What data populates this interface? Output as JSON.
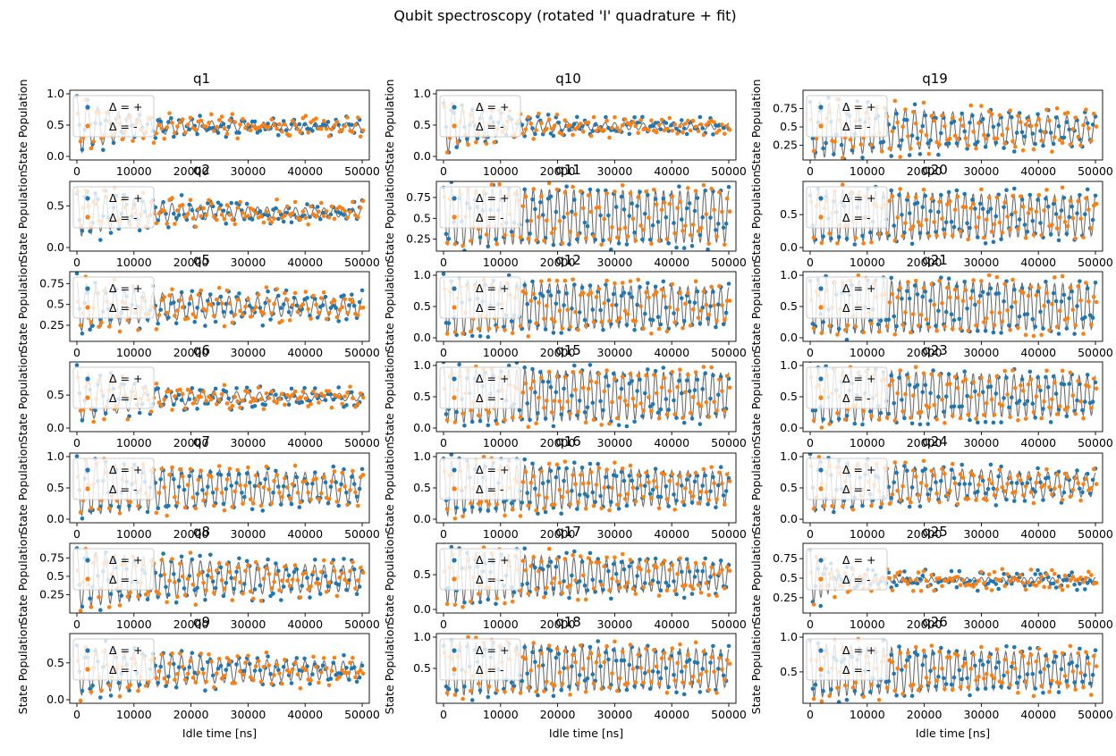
{
  "figure": {
    "suptitle": "Qubit spectroscopy (rotated 'I' quadrature + fit)"
  },
  "colors": {
    "series_plus": "#1f77b4",
    "series_minus": "#ff7f0e",
    "fit": "#555555"
  },
  "legend": {
    "plus": "Δ = +",
    "minus": "Δ = -"
  },
  "chart_data": {
    "type": "scatter",
    "layout": "7 rows x 3 columns",
    "xlabel": "Idle time [ns]",
    "ylabel": "State Population",
    "xlim": [
      0,
      50000
    ],
    "xticks": [
      0,
      10000,
      20000,
      30000,
      40000,
      50000
    ],
    "series_names": [
      "Δ = +",
      "Δ = -"
    ],
    "legend_position": "upper-left",
    "panels": [
      {
        "title": "q1",
        "ylim": [
          0,
          1.0
        ],
        "yticks": [
          0.0,
          0.5,
          1.0
        ],
        "amp0": 0.45,
        "amp1": 0.06,
        "decay": 9000,
        "center": 0.48,
        "freq": 0.00055
      },
      {
        "title": "q2",
        "ylim": [
          0,
          0.75
        ],
        "yticks": [
          0.0,
          0.5
        ],
        "amp0": 0.3,
        "amp1": 0.05,
        "decay": 12000,
        "center": 0.42,
        "freq": 0.0006
      },
      {
        "title": "q5",
        "ylim": [
          0.1,
          0.85
        ],
        "yticks": [
          0.25,
          0.5,
          0.75
        ],
        "amp0": 0.3,
        "amp1": 0.1,
        "decay": 14000,
        "center": 0.47,
        "freq": 0.0006
      },
      {
        "title": "q6",
        "ylim": [
          0,
          0.95
        ],
        "yticks": [
          0.0,
          0.5
        ],
        "amp0": 0.4,
        "amp1": 0.05,
        "decay": 12000,
        "center": 0.47,
        "freq": 0.0005
      },
      {
        "title": "q7",
        "ylim": [
          0,
          1.0
        ],
        "yticks": [
          0.0,
          0.5,
          1.0
        ],
        "amp0": 0.45,
        "amp1": 0.2,
        "decay": 25000,
        "center": 0.5,
        "freq": 0.0006
      },
      {
        "title": "q8",
        "ylim": [
          0.05,
          0.9
        ],
        "yticks": [
          0.25,
          0.5,
          0.75
        ],
        "amp0": 0.4,
        "amp1": 0.15,
        "decay": 22000,
        "center": 0.47,
        "freq": 0.0006
      },
      {
        "title": "q9",
        "ylim": [
          0,
          0.85
        ],
        "yticks": [
          0.0,
          0.5
        ],
        "amp0": 0.35,
        "amp1": 0.1,
        "decay": 20000,
        "center": 0.4,
        "freq": 0.0006
      },
      {
        "title": "q10",
        "ylim": [
          0,
          1.0
        ],
        "yticks": [
          0.0,
          0.5,
          1.0
        ],
        "amp0": 0.45,
        "amp1": 0.05,
        "decay": 8000,
        "center": 0.48,
        "freq": 0.0006
      },
      {
        "title": "q11",
        "ylim": [
          0.15,
          0.9
        ],
        "yticks": [
          0.25,
          0.5,
          0.75
        ],
        "amp0": 0.35,
        "amp1": 0.28,
        "decay": 60000,
        "center": 0.52,
        "freq": 0.0007
      },
      {
        "title": "q12",
        "ylim": [
          0,
          1.0
        ],
        "yticks": [
          0.0,
          0.5,
          1.0
        ],
        "amp0": 0.45,
        "amp1": 0.25,
        "decay": 40000,
        "center": 0.5,
        "freq": 0.0007
      },
      {
        "title": "q15",
        "ylim": [
          0,
          1.0
        ],
        "yticks": [
          0.0,
          0.5,
          1.0
        ],
        "amp0": 0.45,
        "amp1": 0.3,
        "decay": 60000,
        "center": 0.52,
        "freq": 0.0007
      },
      {
        "title": "q16",
        "ylim": [
          0,
          1.0
        ],
        "yticks": [
          0.0,
          0.5,
          1.0
        ],
        "amp0": 0.45,
        "amp1": 0.2,
        "decay": 35000,
        "center": 0.5,
        "freq": 0.0007
      },
      {
        "title": "q17",
        "ylim": [
          0,
          0.9
        ],
        "yticks": [
          0.0,
          0.5
        ],
        "amp0": 0.4,
        "amp1": 0.15,
        "decay": 30000,
        "center": 0.48,
        "freq": 0.0007
      },
      {
        "title": "q18",
        "ylim": [
          0,
          1.0
        ],
        "yticks": [
          0.5,
          1.0
        ],
        "amp0": 0.45,
        "amp1": 0.25,
        "decay": 40000,
        "center": 0.5,
        "freq": 0.0007
      },
      {
        "title": "q19",
        "ylim": [
          0.1,
          0.95
        ],
        "yticks": [
          0.25,
          0.5,
          0.75
        ],
        "amp0": 0.4,
        "amp1": 0.15,
        "decay": 25000,
        "center": 0.46,
        "freq": 0.0006
      },
      {
        "title": "q20",
        "ylim": [
          0,
          0.95
        ],
        "yticks": [
          0.0,
          0.5
        ],
        "amp0": 0.42,
        "amp1": 0.25,
        "decay": 45000,
        "center": 0.48,
        "freq": 0.0007
      },
      {
        "title": "q21",
        "ylim": [
          0,
          1.0
        ],
        "yticks": [
          0.0,
          0.5,
          1.0
        ],
        "amp0": 0.45,
        "amp1": 0.3,
        "decay": 60000,
        "center": 0.5,
        "freq": 0.0007
      },
      {
        "title": "q23",
        "ylim": [
          0,
          1.0
        ],
        "yticks": [
          0.0,
          0.5,
          1.0
        ],
        "amp0": 0.45,
        "amp1": 0.25,
        "decay": 45000,
        "center": 0.52,
        "freq": 0.0007
      },
      {
        "title": "q24",
        "ylim": [
          0,
          1.0
        ],
        "yticks": [
          0.0,
          0.5,
          1.0
        ],
        "amp0": 0.45,
        "amp1": 0.15,
        "decay": 25000,
        "center": 0.55,
        "freq": 0.0006
      },
      {
        "title": "q25",
        "ylim": [
          0.1,
          0.9
        ],
        "yticks": [
          0.25,
          0.5,
          0.75
        ],
        "amp0": 0.35,
        "amp1": 0.03,
        "decay": 4000,
        "center": 0.48,
        "freq": 0.0008
      },
      {
        "title": "q26",
        "ylim": [
          0.1,
          1.0
        ],
        "yticks": [
          0.5,
          1.0
        ],
        "amp0": 0.4,
        "amp1": 0.2,
        "decay": 35000,
        "center": 0.52,
        "freq": 0.0007
      }
    ]
  }
}
